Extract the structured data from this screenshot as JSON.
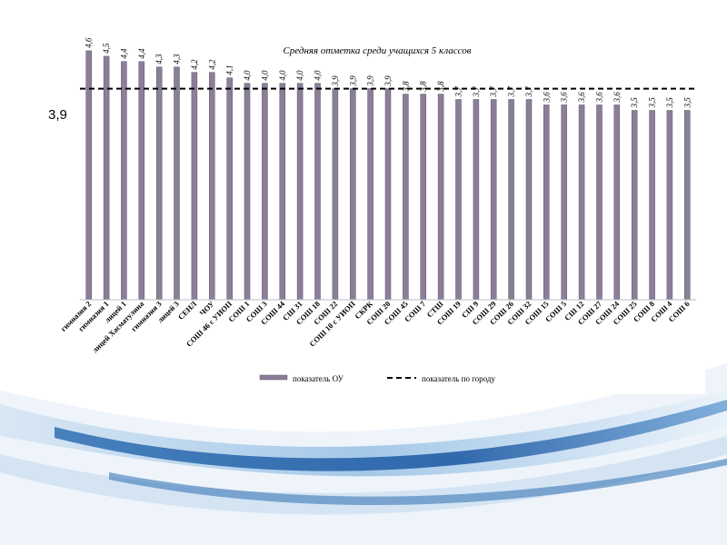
{
  "slide": {
    "ref_label": "3,9"
  },
  "chart_data": {
    "type": "bar",
    "title": "Средняя отметка среди учащихся 5 классов",
    "xlabel": "",
    "ylabel": "",
    "ylim": [
      0,
      4.8
    ],
    "grid": false,
    "legend_placement": "bottom",
    "categories": [
      "гимназия 2",
      "гимназия 1",
      "лицей 1",
      "лицей Хасматулина",
      "гимназия 3",
      "лицей 3",
      "СЕНЛ",
      "ЧОУ",
      "СОШ 46 с УИОП",
      "СОШ 1",
      "СОШ 3",
      "СОШ 44",
      "СШ 31",
      "СОШ 18",
      "СОШ 22",
      "СОШ 10 с УИОП",
      "СКРК",
      "СОШ 20",
      "СОШ 45",
      "СОШ 7",
      "СТШ",
      "СОШ 19",
      "СШ 9",
      "СОШ 29",
      "СОШ 26",
      "СОШ 32",
      "СОШ 15",
      "СОШ 5",
      "СШ 12",
      "СОШ 27",
      "СОШ 24",
      "СОШ 25",
      "СОШ 8",
      "СОШ 4",
      "СОШ 6"
    ],
    "series": [
      {
        "name": "показатель ОУ",
        "color": "#8b7f98",
        "values": [
          4.6,
          4.5,
          4.4,
          4.4,
          4.3,
          4.3,
          4.2,
          4.2,
          4.1,
          4.0,
          4.0,
          4.0,
          4.0,
          4.0,
          3.9,
          3.9,
          3.9,
          3.9,
          3.8,
          3.8,
          3.8,
          3.7,
          3.7,
          3.7,
          3.7,
          3.7,
          3.6,
          3.6,
          3.6,
          3.6,
          3.6,
          3.5,
          3.5,
          3.5,
          3.5
        ],
        "value_labels": [
          "4,6",
          "4,5",
          "4,4",
          "4,4",
          "4,3",
          "4,3",
          "4,2",
          "4,2",
          "4,1",
          "4,0",
          "4,0",
          "4,0",
          "4,0",
          "4,0",
          "3,9",
          "3,9",
          "3,9",
          "3,9",
          "3,8",
          "3,8",
          "3,8",
          "3,7",
          "3,7",
          "3,7",
          "3,7",
          "3,7",
          "3,6",
          "3,6",
          "3,6",
          "3,6",
          "3,6",
          "3,5",
          "3,5",
          "3,5",
          "3,5"
        ]
      },
      {
        "name": "показатель по городу",
        "color": "#000000",
        "value": 3.9,
        "style": "dashed"
      }
    ]
  }
}
